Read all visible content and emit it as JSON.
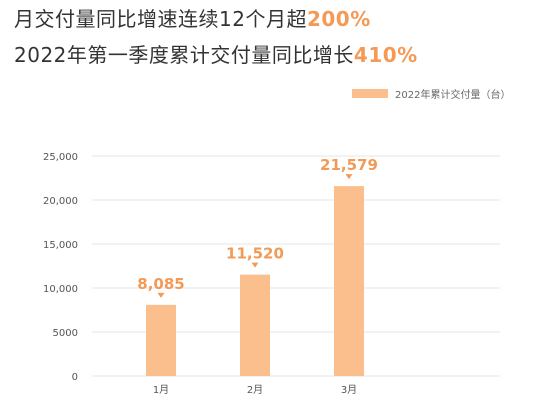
{
  "headline": {
    "line1_prefix": "月交付量同比增速连续12个月超",
    "line1_highlight": "200%",
    "line2_prefix": "2022年第一季度累计交付量同比增长",
    "line2_highlight": "410%"
  },
  "colors": {
    "bar": "#fbbf8d",
    "accent": "#f39a57",
    "text": "#333333",
    "axis_text": "#555555",
    "grid": "#e6e6e6"
  },
  "chart_data": {
    "type": "bar",
    "categories": [
      "1月",
      "2月",
      "3月"
    ],
    "series": [
      {
        "name": "2022年累计交付量（台）",
        "values": [
          8085,
          11520,
          21579
        ],
        "data_labels": [
          "8,085",
          "11,520",
          "21,579"
        ]
      }
    ],
    "ylim": [
      0,
      25000
    ],
    "y_ticks": [
      0,
      5000,
      10000,
      15000,
      20000,
      25000
    ],
    "y_tick_labels": [
      "0",
      "5000",
      "10,000",
      "15,000",
      "20,000",
      "25,000"
    ],
    "grid": true,
    "legend_position": "top-right",
    "title": "",
    "xlabel": "",
    "ylabel": ""
  }
}
